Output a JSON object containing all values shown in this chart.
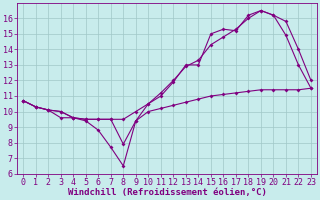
{
  "background_color": "#c8ecec",
  "line_color": "#800080",
  "grid_color": "#a0c8c8",
  "xlabel": "Windchill (Refroidissement éolien,°C)",
  "xlabel_fontsize": 6.5,
  "tick_fontsize": 6,
  "xlim": [
    -0.5,
    23.5
  ],
  "ylim": [
    6,
    17
  ],
  "yticks": [
    6,
    7,
    8,
    9,
    10,
    11,
    12,
    13,
    14,
    15,
    16
  ],
  "xticks": [
    0,
    1,
    2,
    3,
    4,
    5,
    6,
    7,
    8,
    9,
    10,
    11,
    12,
    13,
    14,
    15,
    16,
    17,
    18,
    19,
    20,
    21,
    22,
    23
  ],
  "series1_x": [
    0,
    1,
    2,
    3,
    4,
    5,
    6,
    7,
    8,
    9,
    10,
    11,
    12,
    13,
    14,
    15,
    16,
    17,
    18,
    19,
    20,
    21,
    22,
    23
  ],
  "series1_y": [
    10.7,
    10.3,
    10.1,
    9.6,
    9.6,
    9.4,
    8.8,
    7.7,
    6.5,
    9.4,
    10.5,
    11.0,
    11.9,
    13.0,
    13.0,
    15.0,
    15.3,
    15.2,
    16.2,
    16.5,
    16.2,
    14.9,
    13.0,
    11.5
  ],
  "series2_x": [
    0,
    1,
    2,
    3,
    4,
    5,
    6,
    7,
    8,
    9,
    10,
    11,
    12,
    13,
    14,
    15,
    16,
    17,
    18,
    19,
    20,
    21,
    22,
    23
  ],
  "series2_y": [
    10.7,
    10.3,
    10.1,
    10.0,
    9.6,
    9.5,
    9.5,
    9.5,
    7.9,
    9.4,
    10.0,
    10.2,
    10.4,
    10.6,
    10.8,
    11.0,
    11.1,
    11.2,
    11.3,
    11.4,
    11.4,
    11.4,
    11.4,
    11.5
  ],
  "series3_x": [
    0,
    1,
    2,
    3,
    4,
    5,
    6,
    7,
    8,
    9,
    10,
    11,
    12,
    13,
    14,
    15,
    16,
    17,
    18,
    19,
    20,
    21,
    22,
    23
  ],
  "series3_y": [
    10.7,
    10.3,
    10.1,
    10.0,
    9.6,
    9.5,
    9.5,
    9.5,
    9.5,
    10.0,
    10.5,
    11.2,
    12.0,
    12.9,
    13.3,
    14.3,
    14.8,
    15.3,
    16.0,
    16.5,
    16.2,
    15.8,
    14.0,
    12.0
  ]
}
